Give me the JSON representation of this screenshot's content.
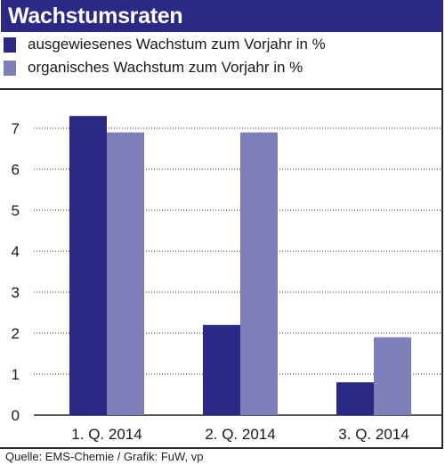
{
  "header": {
    "title": "Wachstumsraten"
  },
  "colors": {
    "title_bg": "#2a2a86",
    "series_dark": "#2a2a86",
    "series_light": "#7e7fb8",
    "grid": "#333333"
  },
  "legend": [
    {
      "label": "ausgewiesenes Wachstum zum Vorjahr in %",
      "color": "#2a2a86"
    },
    {
      "label": "organisches Wachstum zum Vorjahr in %",
      "color": "#7e7fb8"
    }
  ],
  "chart_data": {
    "type": "bar",
    "categories": [
      "1. Q. 2014",
      "2. Q. 2014",
      "3. Q. 2014"
    ],
    "series": [
      {
        "name": "ausgewiesenes Wachstum zum Vorjahr in %",
        "values": [
          7.3,
          2.2,
          0.8
        ]
      },
      {
        "name": "organisches Wachstum zum Vorjahr in %",
        "values": [
          6.9,
          6.9,
          1.9
        ]
      }
    ],
    "yticks": [
      "0",
      "1",
      "2",
      "3",
      "4",
      "5",
      "6",
      "7"
    ],
    "ylim": [
      0,
      7.3
    ],
    "grid": "dotted horizontal",
    "legend_position": "top"
  },
  "footer": {
    "source": "Quelle: EMS-Chemie / Grafik: FuW, vp"
  }
}
